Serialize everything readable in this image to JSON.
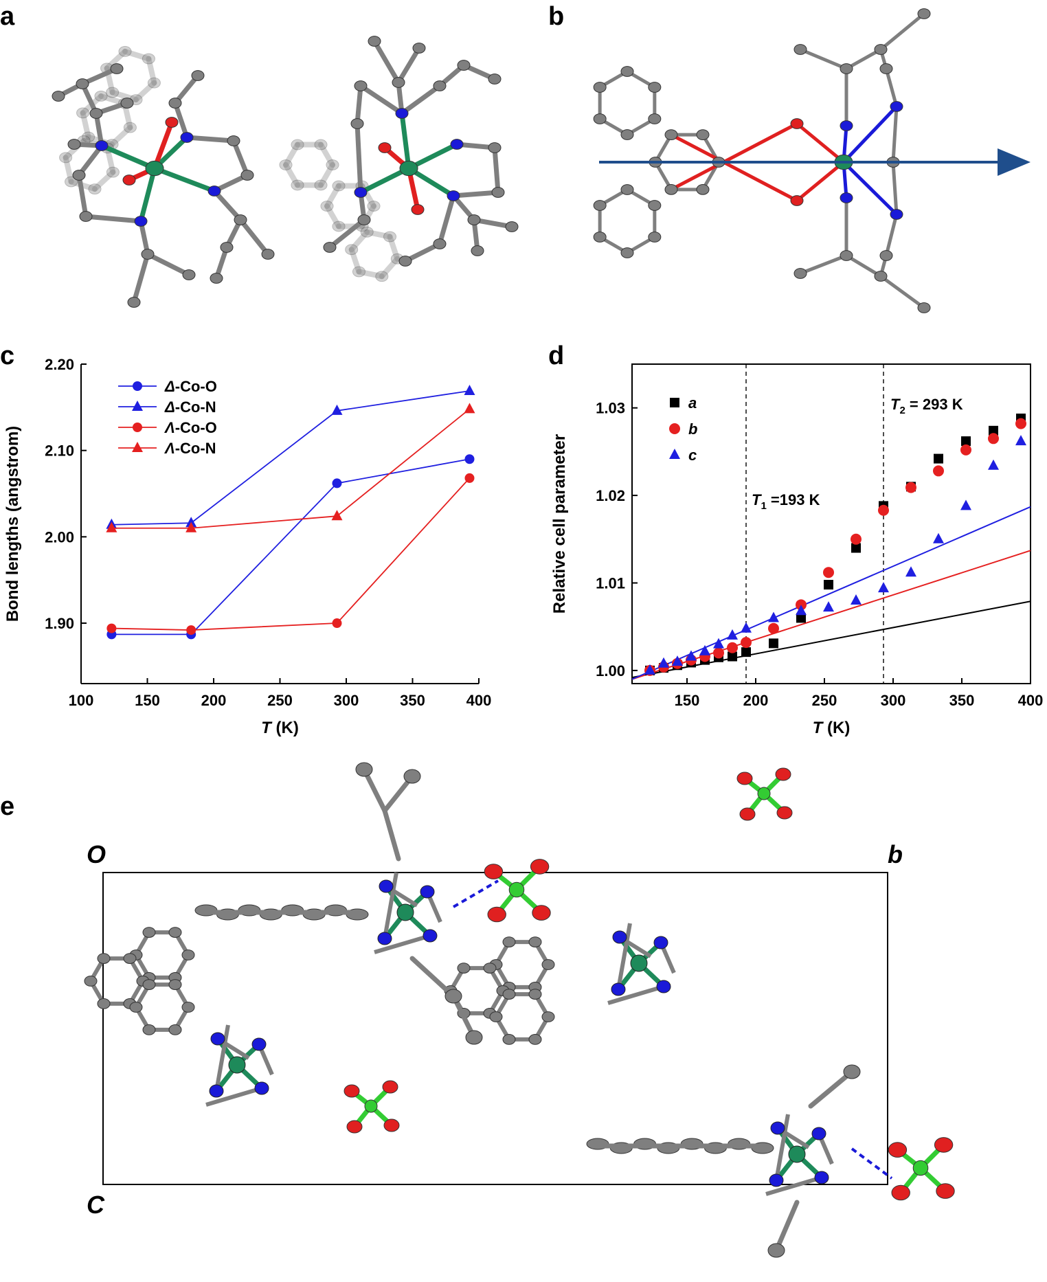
{
  "panels": {
    "a": "a",
    "b": "b",
    "c": "c",
    "d": "d",
    "e": "e"
  },
  "cell_axes": {
    "origin": "O",
    "b_axis": "b",
    "c_axis": "C"
  },
  "colors": {
    "carbon": "#7f7f7f",
    "nitrogen": "#1a1ad8",
    "oxygen": "#e02020",
    "cobalt": "#1e8a5a",
    "chlorine": "#33cc33",
    "arrow": "#1f4e8c",
    "blue_series": "#1f1fe0",
    "red_series": "#e52020",
    "black_series": "#000000"
  },
  "chart_data": [
    {
      "type": "line",
      "panel": "c",
      "xlabel_italic": "T",
      "xlabel_unit": " (K)",
      "ylabel": "Bond lengths (angstrom)",
      "xlim": [
        100,
        400
      ],
      "ylim": [
        1.83,
        2.2
      ],
      "xticks": [
        100,
        150,
        200,
        250,
        300,
        350,
        400
      ],
      "yticks": [
        "1.90",
        "2.00",
        "2.10",
        "2.20"
      ],
      "legend_position": "top-left",
      "x": [
        123,
        183,
        293,
        393
      ],
      "series": [
        {
          "prefix": "Δ",
          "name": "-Co-O",
          "color": "#1f1fe0",
          "marker": "circle",
          "values": [
            1.887,
            1.887,
            2.062,
            2.09
          ]
        },
        {
          "prefix": "Δ",
          "name": "-Co-N",
          "color": "#1f1fe0",
          "marker": "triangle",
          "values": [
            2.014,
            2.016,
            2.146,
            2.169
          ]
        },
        {
          "prefix": "Λ",
          "name": "-Co-O",
          "color": "#e52020",
          "marker": "circle",
          "values": [
            1.894,
            1.892,
            1.9,
            2.068
          ]
        },
        {
          "prefix": "Λ",
          "name": "-Co-N",
          "color": "#e52020",
          "marker": "triangle",
          "values": [
            2.01,
            2.01,
            2.024,
            2.148
          ]
        }
      ]
    },
    {
      "type": "scatter",
      "panel": "d",
      "xlabel_italic": "T",
      "xlabel_unit": " (K)",
      "ylabel": "Relative cell parameter",
      "xlim": [
        110,
        400
      ],
      "ylim": [
        0.9985,
        1.035
      ],
      "xticks": [
        150,
        200,
        250,
        300,
        350,
        400
      ],
      "yticks": [
        "1.00",
        "1.01",
        "1.02",
        "1.03"
      ],
      "legend_position": "top-left",
      "vlines": [
        {
          "x": 193,
          "label_italic": "T",
          "label_sub": "1",
          "label_rest": " =193 K"
        },
        {
          "x": 293,
          "label_italic": "T",
          "label_sub": "2",
          "label_rest": " = 293 K"
        }
      ],
      "fit_lines": [
        {
          "color": "#000000",
          "x": [
            110,
            400
          ],
          "y": [
            0.9992,
            1.0079
          ]
        },
        {
          "color": "#e52020",
          "x": [
            110,
            400
          ],
          "y": [
            0.999,
            1.0137
          ]
        },
        {
          "color": "#1f1fe0",
          "x": [
            110,
            400
          ],
          "y": [
            0.999,
            1.0187
          ]
        }
      ],
      "series": [
        {
          "name": "a",
          "color": "#000000",
          "marker": "square",
          "x": [
            123,
            133,
            143,
            153,
            163,
            173,
            183,
            193,
            213,
            233,
            253,
            273,
            293,
            313,
            333,
            353,
            373,
            393
          ],
          "y": [
            1.0,
            1.0003,
            1.0006,
            1.0009,
            1.0012,
            1.0015,
            1.0016,
            1.0021,
            1.0031,
            1.006,
            1.0098,
            1.014,
            1.0188,
            1.021,
            1.0242,
            1.0262,
            1.0274,
            1.0288
          ]
        },
        {
          "name": "b",
          "color": "#e52020",
          "marker": "circle",
          "x": [
            123,
            133,
            143,
            153,
            163,
            173,
            183,
            193,
            213,
            233,
            253,
            273,
            293,
            313,
            333,
            353,
            373,
            393
          ],
          "y": [
            1.0,
            1.0004,
            1.0008,
            1.0012,
            1.0016,
            1.002,
            1.0026,
            1.0032,
            1.0048,
            1.0075,
            1.0112,
            1.015,
            1.0183,
            1.0209,
            1.0228,
            1.0252,
            1.0265,
            1.0282
          ]
        },
        {
          "name": "c",
          "color": "#1f1fe0",
          "marker": "triangle",
          "x": [
            123,
            133,
            143,
            153,
            163,
            173,
            183,
            193,
            213,
            233,
            253,
            273,
            293,
            313,
            333,
            353,
            373,
            393
          ],
          "y": [
            1.0,
            1.0008,
            1.001,
            1.0016,
            1.0022,
            1.003,
            1.004,
            1.0048,
            1.006,
            1.0068,
            1.0072,
            1.008,
            1.0094,
            1.0112,
            1.015,
            1.0188,
            1.0234,
            1.0262
          ]
        }
      ]
    }
  ]
}
